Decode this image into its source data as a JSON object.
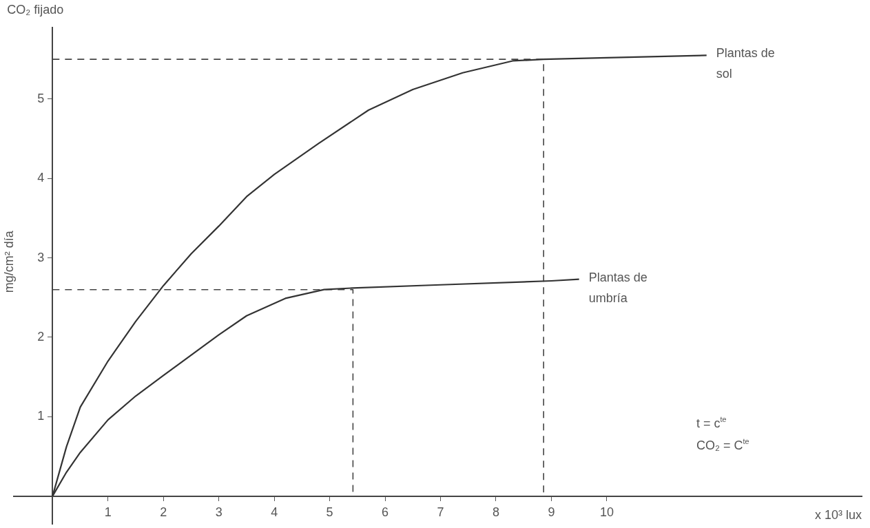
{
  "chart_data": {
    "type": "line",
    "title": "CO₂ fijado",
    "xlabel": "x 10³ lux",
    "ylabel": "mg/cm² día",
    "xlim": [
      -0.7,
      14.6
    ],
    "ylim": [
      -0.35,
      5.9
    ],
    "xticks": [
      1,
      2,
      3,
      4,
      5,
      6,
      7,
      8,
      9,
      10
    ],
    "yticks": [
      1,
      2,
      3,
      4,
      5
    ],
    "grid": false,
    "legend": false,
    "marker": "none",
    "annotations": [
      "t = c$^{te}$",
      "CO₂ = C$^{te}$"
    ],
    "series": [
      {
        "name": "Plantas de sol",
        "color": "#333333",
        "line_style": "solid",
        "x": [
          0,
          0.25,
          0.5,
          1,
          1.5,
          2,
          2.5,
          3,
          3.5,
          4,
          4.8,
          5.7,
          6.5,
          7.4,
          8.3,
          8.86,
          10,
          11.8
        ],
        "values": [
          0,
          0.62,
          1.12,
          1.7,
          2.2,
          2.65,
          3.05,
          3.4,
          3.77,
          4.05,
          4.44,
          4.86,
          5.12,
          5.33,
          5.48,
          5.5,
          5.52,
          5.55
        ]
      },
      {
        "name": "Plantas de umbría",
        "color": "#333333",
        "line_style": "solid",
        "x": [
          0,
          0.25,
          0.5,
          1,
          1.5,
          2,
          3,
          3.5,
          4.2,
          4.9,
          5.42,
          7,
          9,
          9.5
        ],
        "values": [
          0,
          0.3,
          0.55,
          0.96,
          1.26,
          1.52,
          2.03,
          2.27,
          2.49,
          2.6,
          2.62,
          2.66,
          2.71,
          2.73
        ]
      },
      {
        "color": "#444444",
        "line_style": "dashed",
        "x": [
          0,
          8.86,
          8.86
        ],
        "values": [
          5.5,
          5.5,
          0
        ]
      },
      {
        "color": "#444444",
        "line_style": "dashed",
        "x": [
          0,
          5.42,
          5.42
        ],
        "values": [
          2.6,
          2.6,
          0
        ]
      }
    ]
  }
}
